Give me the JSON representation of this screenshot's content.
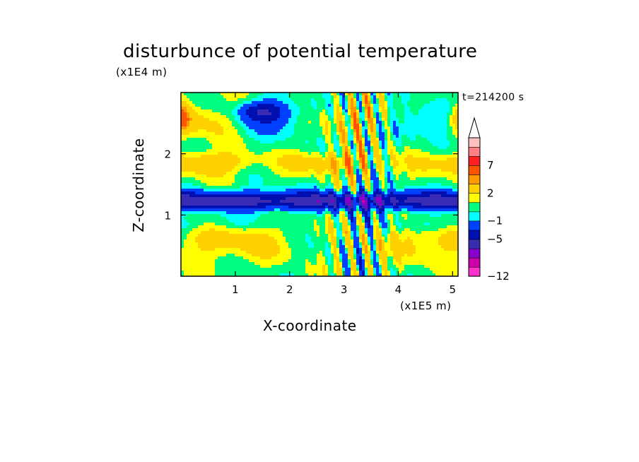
{
  "chart_data": {
    "type": "heatmap",
    "title": "disturbunce of potential temperature",
    "xlabel": "X-coordinate",
    "ylabel": "Z-coordinate",
    "x_unit": "(x1E5 m)",
    "y_unit": "(x1E4 m)",
    "time_label": "t=214200 s",
    "xlim": [
      0,
      5.1
    ],
    "ylim": [
      0,
      3.0
    ],
    "x_ticks": [
      {
        "value": 1,
        "label": "1"
      },
      {
        "value": 2,
        "label": "2"
      },
      {
        "value": 3,
        "label": "3"
      },
      {
        "value": 4,
        "label": "4"
      },
      {
        "value": 5,
        "label": "5"
      }
    ],
    "y_ticks": [
      {
        "value": 1,
        "label": "1"
      },
      {
        "value": 2,
        "label": "2"
      }
    ],
    "colorbar": {
      "levels": [
        -12,
        -11,
        -9,
        -7,
        -5,
        -3,
        -1,
        0,
        1,
        2,
        4,
        5,
        7,
        9,
        11
      ],
      "colors": [
        "#ff33cc",
        "#cc00aa",
        "#8800cc",
        "#3a2bb4",
        "#0010b0",
        "#0040ff",
        "#00ffff",
        "#00ff80",
        "#ffff00",
        "#ffd000",
        "#ff9900",
        "#ff5500",
        "#ff2020",
        "#ff8080",
        "#ffc0c0"
      ],
      "tick_labels": [
        {
          "value": -12,
          "label": "−12"
        },
        {
          "value": -5,
          "label": "−5"
        },
        {
          "value": -1,
          "label": "−1"
        },
        {
          "value": 2,
          "label": "2"
        },
        {
          "value": 7,
          "label": "7"
        }
      ],
      "extend": "max"
    },
    "grid": false,
    "legend_placement": "right"
  }
}
